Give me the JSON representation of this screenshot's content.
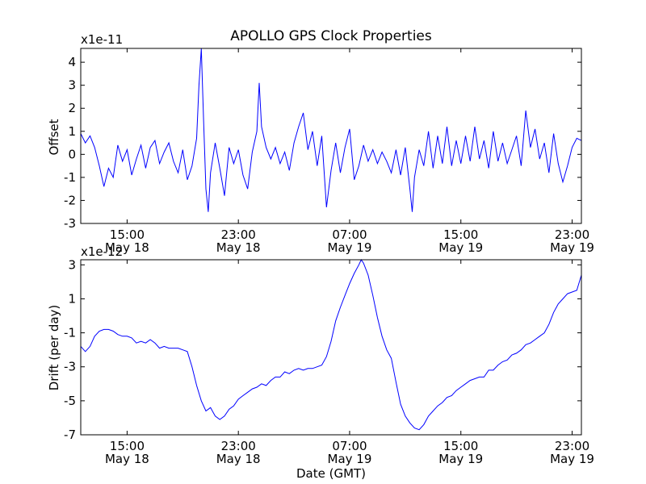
{
  "figure": {
    "title": "APOLLO GPS Clock Properties",
    "xlabel": "Date (GMT)"
  },
  "chart_data": [
    {
      "type": "line",
      "title": "APOLLO GPS Clock Properties",
      "ylabel": "Offset",
      "scale_label": "x1e-11",
      "ylim": [
        -3,
        4.6
      ],
      "xlim": [
        0,
        10.8
      ],
      "xticks": [
        {
          "x": 1.0,
          "time": "15:00",
          "date": "May 18"
        },
        {
          "x": 3.4,
          "time": "23:00",
          "date": "May 18"
        },
        {
          "x": 5.8,
          "time": "07:00",
          "date": "May 19"
        },
        {
          "x": 8.2,
          "time": "15:00",
          "date": "May 19"
        },
        {
          "x": 10.6,
          "time": "23:00",
          "date": "May 19"
        }
      ],
      "yticks": [
        "-3",
        "-2",
        "-1",
        "0",
        "1",
        "2",
        "3",
        "4"
      ],
      "yvalues": [
        -3,
        -2,
        -1,
        0,
        1,
        2,
        3,
        4
      ],
      "series": [
        {
          "color": "#0000ff",
          "points": [
            [
              0.0,
              0.9
            ],
            [
              0.1,
              0.5
            ],
            [
              0.2,
              0.8
            ],
            [
              0.3,
              0.3
            ],
            [
              0.4,
              -0.5
            ],
            [
              0.5,
              -1.4
            ],
            [
              0.6,
              -0.6
            ],
            [
              0.7,
              -1.0
            ],
            [
              0.8,
              0.4
            ],
            [
              0.9,
              -0.3
            ],
            [
              1.0,
              0.2
            ],
            [
              1.1,
              -0.9
            ],
            [
              1.2,
              -0.2
            ],
            [
              1.3,
              0.4
            ],
            [
              1.4,
              -0.6
            ],
            [
              1.5,
              0.3
            ],
            [
              1.6,
              0.6
            ],
            [
              1.7,
              -0.4
            ],
            [
              1.8,
              0.1
            ],
            [
              1.9,
              0.5
            ],
            [
              2.0,
              -0.3
            ],
            [
              2.1,
              -0.8
            ],
            [
              2.2,
              0.2
            ],
            [
              2.3,
              -1.1
            ],
            [
              2.4,
              -0.5
            ],
            [
              2.5,
              0.7
            ],
            [
              2.55,
              3.0
            ],
            [
              2.6,
              4.6
            ],
            [
              2.65,
              1.5
            ],
            [
              2.7,
              -1.5
            ],
            [
              2.75,
              -2.5
            ],
            [
              2.8,
              -0.8
            ],
            [
              2.9,
              0.5
            ],
            [
              3.0,
              -0.6
            ],
            [
              3.1,
              -1.8
            ],
            [
              3.2,
              0.3
            ],
            [
              3.3,
              -0.4
            ],
            [
              3.4,
              0.2
            ],
            [
              3.5,
              -0.9
            ],
            [
              3.6,
              -1.5
            ],
            [
              3.7,
              0.1
            ],
            [
              3.8,
              1.0
            ],
            [
              3.85,
              3.1
            ],
            [
              3.9,
              1.2
            ],
            [
              4.0,
              0.3
            ],
            [
              4.1,
              -0.2
            ],
            [
              4.2,
              0.3
            ],
            [
              4.3,
              -0.4
            ],
            [
              4.4,
              0.1
            ],
            [
              4.5,
              -0.7
            ],
            [
              4.6,
              0.5
            ],
            [
              4.7,
              1.2
            ],
            [
              4.8,
              1.8
            ],
            [
              4.9,
              0.2
            ],
            [
              5.0,
              1.0
            ],
            [
              5.1,
              -0.5
            ],
            [
              5.2,
              0.8
            ],
            [
              5.3,
              -2.3
            ],
            [
              5.4,
              -0.7
            ],
            [
              5.5,
              0.5
            ],
            [
              5.6,
              -0.8
            ],
            [
              5.7,
              0.3
            ],
            [
              5.8,
              1.1
            ],
            [
              5.9,
              -1.1
            ],
            [
              6.0,
              -0.5
            ],
            [
              6.1,
              0.4
            ],
            [
              6.2,
              -0.3
            ],
            [
              6.3,
              0.2
            ],
            [
              6.4,
              -0.4
            ],
            [
              6.5,
              0.1
            ],
            [
              6.6,
              -0.3
            ],
            [
              6.7,
              -0.8
            ],
            [
              6.8,
              0.2
            ],
            [
              6.9,
              -0.9
            ],
            [
              7.0,
              0.3
            ],
            [
              7.1,
              -1.5
            ],
            [
              7.15,
              -2.5
            ],
            [
              7.2,
              -1.0
            ],
            [
              7.3,
              0.2
            ],
            [
              7.4,
              -0.5
            ],
            [
              7.5,
              1.0
            ],
            [
              7.6,
              -0.6
            ],
            [
              7.7,
              0.8
            ],
            [
              7.8,
              -0.4
            ],
            [
              7.9,
              1.2
            ],
            [
              8.0,
              -0.5
            ],
            [
              8.1,
              0.6
            ],
            [
              8.2,
              -0.4
            ],
            [
              8.3,
              0.8
            ],
            [
              8.4,
              -0.3
            ],
            [
              8.5,
              1.2
            ],
            [
              8.6,
              -0.2
            ],
            [
              8.7,
              0.6
            ],
            [
              8.8,
              -0.6
            ],
            [
              8.9,
              1.0
            ],
            [
              9.0,
              -0.3
            ],
            [
              9.1,
              0.5
            ],
            [
              9.2,
              -0.4
            ],
            [
              9.3,
              0.2
            ],
            [
              9.4,
              0.8
            ],
            [
              9.5,
              -0.5
            ],
            [
              9.6,
              1.9
            ],
            [
              9.7,
              0.3
            ],
            [
              9.8,
              1.1
            ],
            [
              9.9,
              -0.2
            ],
            [
              10.0,
              0.5
            ],
            [
              10.1,
              -0.8
            ],
            [
              10.2,
              0.9
            ],
            [
              10.3,
              -0.4
            ],
            [
              10.4,
              -1.2
            ],
            [
              10.5,
              -0.5
            ],
            [
              10.6,
              0.3
            ],
            [
              10.7,
              0.7
            ],
            [
              10.8,
              0.6
            ]
          ]
        }
      ]
    },
    {
      "type": "line",
      "ylabel": "Drift (per day)",
      "xlabel": "Date (GMT)",
      "scale_label": "x1e-12",
      "ylim": [
        -7,
        3.3
      ],
      "xlim": [
        0,
        10.8
      ],
      "xticks": [
        {
          "x": 1.0,
          "time": "15:00",
          "date": "May 18"
        },
        {
          "x": 3.4,
          "time": "23:00",
          "date": "May 18"
        },
        {
          "x": 5.8,
          "time": "07:00",
          "date": "May 19"
        },
        {
          "x": 8.2,
          "time": "15:00",
          "date": "May 19"
        },
        {
          "x": 10.6,
          "time": "23:00",
          "date": "May 19"
        }
      ],
      "yticks": [
        "-7",
        "-5",
        "-3",
        "-1",
        "1",
        "3"
      ],
      "yvalues": [
        -7,
        -5,
        -3,
        -1,
        1,
        3
      ],
      "series": [
        {
          "color": "#0000ff",
          "points": [
            [
              0.0,
              -1.8
            ],
            [
              0.1,
              -2.1
            ],
            [
              0.2,
              -1.8
            ],
            [
              0.3,
              -1.2
            ],
            [
              0.4,
              -0.9
            ],
            [
              0.5,
              -0.8
            ],
            [
              0.6,
              -0.8
            ],
            [
              0.7,
              -0.9
            ],
            [
              0.8,
              -1.1
            ],
            [
              0.9,
              -1.2
            ],
            [
              1.0,
              -1.2
            ],
            [
              1.1,
              -1.3
            ],
            [
              1.2,
              -1.6
            ],
            [
              1.3,
              -1.5
            ],
            [
              1.4,
              -1.6
            ],
            [
              1.5,
              -1.4
            ],
            [
              1.6,
              -1.6
            ],
            [
              1.7,
              -1.9
            ],
            [
              1.8,
              -1.8
            ],
            [
              1.9,
              -1.9
            ],
            [
              2.0,
              -1.9
            ],
            [
              2.1,
              -1.9
            ],
            [
              2.2,
              -2.0
            ],
            [
              2.3,
              -2.1
            ],
            [
              2.4,
              -3.0
            ],
            [
              2.5,
              -4.1
            ],
            [
              2.6,
              -5.0
            ],
            [
              2.7,
              -5.6
            ],
            [
              2.8,
              -5.4
            ],
            [
              2.9,
              -5.9
            ],
            [
              3.0,
              -6.1
            ],
            [
              3.1,
              -5.9
            ],
            [
              3.2,
              -5.5
            ],
            [
              3.3,
              -5.3
            ],
            [
              3.4,
              -4.9
            ],
            [
              3.5,
              -4.7
            ],
            [
              3.6,
              -4.5
            ],
            [
              3.7,
              -4.3
            ],
            [
              3.8,
              -4.2
            ],
            [
              3.9,
              -4.0
            ],
            [
              4.0,
              -4.1
            ],
            [
              4.1,
              -3.8
            ],
            [
              4.2,
              -3.6
            ],
            [
              4.3,
              -3.6
            ],
            [
              4.4,
              -3.3
            ],
            [
              4.5,
              -3.4
            ],
            [
              4.6,
              -3.2
            ],
            [
              4.7,
              -3.1
            ],
            [
              4.8,
              -3.2
            ],
            [
              4.9,
              -3.1
            ],
            [
              5.0,
              -3.1
            ],
            [
              5.1,
              -3.0
            ],
            [
              5.2,
              -2.9
            ],
            [
              5.3,
              -2.4
            ],
            [
              5.4,
              -1.5
            ],
            [
              5.5,
              -0.3
            ],
            [
              5.6,
              0.5
            ],
            [
              5.7,
              1.2
            ],
            [
              5.8,
              1.9
            ],
            [
              5.9,
              2.5
            ],
            [
              6.0,
              3.0
            ],
            [
              6.05,
              3.3
            ],
            [
              6.1,
              3.1
            ],
            [
              6.2,
              2.4
            ],
            [
              6.3,
              1.2
            ],
            [
              6.4,
              -0.1
            ],
            [
              6.5,
              -1.2
            ],
            [
              6.6,
              -2.0
            ],
            [
              6.7,
              -2.5
            ],
            [
              6.8,
              -3.9
            ],
            [
              6.9,
              -5.2
            ],
            [
              7.0,
              -5.9
            ],
            [
              7.1,
              -6.3
            ],
            [
              7.2,
              -6.6
            ],
            [
              7.3,
              -6.7
            ],
            [
              7.4,
              -6.4
            ],
            [
              7.5,
              -5.9
            ],
            [
              7.6,
              -5.6
            ],
            [
              7.7,
              -5.3
            ],
            [
              7.8,
              -5.1
            ],
            [
              7.9,
              -4.8
            ],
            [
              8.0,
              -4.7
            ],
            [
              8.1,
              -4.4
            ],
            [
              8.2,
              -4.2
            ],
            [
              8.3,
              -4.0
            ],
            [
              8.4,
              -3.8
            ],
            [
              8.5,
              -3.7
            ],
            [
              8.6,
              -3.6
            ],
            [
              8.7,
              -3.6
            ],
            [
              8.8,
              -3.2
            ],
            [
              8.9,
              -3.2
            ],
            [
              9.0,
              -2.9
            ],
            [
              9.1,
              -2.7
            ],
            [
              9.2,
              -2.6
            ],
            [
              9.3,
              -2.3
            ],
            [
              9.4,
              -2.2
            ],
            [
              9.5,
              -2.0
            ],
            [
              9.6,
              -1.7
            ],
            [
              9.7,
              -1.6
            ],
            [
              9.8,
              -1.4
            ],
            [
              9.9,
              -1.2
            ],
            [
              10.0,
              -1.0
            ],
            [
              10.1,
              -0.5
            ],
            [
              10.2,
              0.2
            ],
            [
              10.3,
              0.7
            ],
            [
              10.4,
              1.0
            ],
            [
              10.5,
              1.3
            ],
            [
              10.6,
              1.4
            ],
            [
              10.7,
              1.5
            ],
            [
              10.8,
              2.4
            ]
          ]
        }
      ]
    }
  ]
}
